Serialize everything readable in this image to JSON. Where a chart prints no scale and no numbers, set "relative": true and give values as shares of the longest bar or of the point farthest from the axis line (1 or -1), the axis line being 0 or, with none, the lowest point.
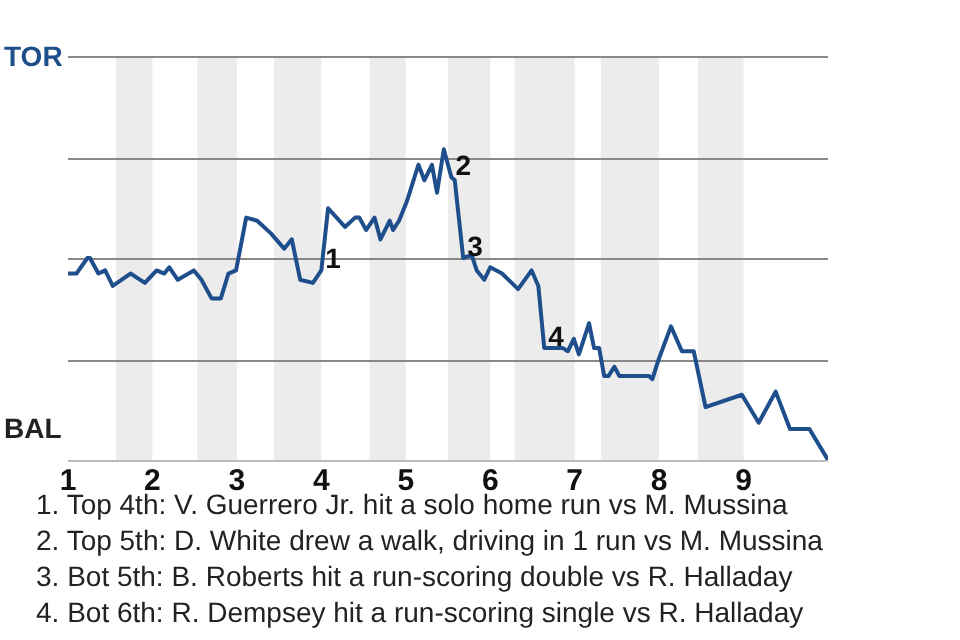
{
  "chart_data": {
    "type": "line",
    "x": [
      1,
      1.1,
      1.23,
      1.26,
      1.36,
      1.44,
      1.53,
      1.74,
      1.91,
      2.05,
      2.14,
      2.2,
      2.3,
      2.49,
      2.58,
      2.7,
      2.81,
      2.9,
      2.99,
      3.11,
      3.24,
      3.4,
      3.56,
      3.65,
      3.75,
      3.9,
      4,
      4.08,
      4.28,
      4.4,
      4.45,
      4.53,
      4.63,
      4.7,
      4.81,
      4.85,
      4.92,
      5.01,
      5.15,
      5.22,
      5.31,
      5.37,
      5.45,
      5.54,
      5.58,
      5.68,
      5.78,
      5.84,
      5.93,
      6,
      6.14,
      6.33,
      6.49,
      6.57,
      6.64,
      6.86,
      6.92,
      6.99,
      7.05,
      7.17,
      7.23,
      7.29,
      7.35,
      7.4,
      7.47,
      7.53,
      7.88,
      7.92,
      7.99,
      8.14,
      8.27,
      8.41,
      8.55,
      8.98,
      9.18,
      9.38,
      9.55,
      9.78,
      10
    ],
    "series": [
      {
        "color": "#1f4e8c",
        "values": [
          0.6,
          0.6,
          0.65,
          0.65,
          0.6,
          0.61,
          0.56,
          0.6,
          0.57,
          0.61,
          0.6,
          0.62,
          0.58,
          0.61,
          0.58,
          0.52,
          0.52,
          0.6,
          0.61,
          0.78,
          0.77,
          0.73,
          0.68,
          0.71,
          0.58,
          0.57,
          0.61,
          0.81,
          0.75,
          0.78,
          0.78,
          0.74,
          0.78,
          0.71,
          0.77,
          0.74,
          0.77,
          0.83,
          0.95,
          0.9,
          0.95,
          0.86,
          1,
          0.91,
          0.9,
          0.65,
          0.66,
          0.61,
          0.58,
          0.62,
          0.6,
          0.55,
          0.61,
          0.56,
          0.36,
          0.36,
          0.35,
          0.39,
          0.34,
          0.44,
          0.36,
          0.36,
          0.27,
          0.27,
          0.3,
          0.27,
          0.27,
          0.26,
          0.32,
          0.43,
          0.35,
          0.35,
          0.17,
          0.21,
          0.12,
          0.22,
          0.1,
          0.1,
          0
        ]
      }
    ],
    "xlim": [
      1,
      10
    ],
    "xticks": [
      1,
      2,
      3,
      4,
      5,
      6,
      7,
      8,
      9
    ],
    "relative": true,
    "grid": "y",
    "bands": [
      {
        "axis": "x",
        "from": 1.57,
        "to": 2,
        "color": "#ececec"
      },
      {
        "axis": "x",
        "from": 2.53,
        "to": 3,
        "color": "#ececec"
      },
      {
        "axis": "x",
        "from": 3.44,
        "to": 4,
        "color": "#ececec"
      },
      {
        "axis": "x",
        "from": 4.57,
        "to": 5,
        "color": "#ececec"
      },
      {
        "axis": "x",
        "from": 5.5,
        "to": 6,
        "color": "#ececec"
      },
      {
        "axis": "x",
        "from": 6.29,
        "to": 7,
        "color": "#ececec"
      },
      {
        "axis": "x",
        "from": 7.31,
        "to": 8,
        "color": "#ececec"
      },
      {
        "axis": "x",
        "from": 8.46,
        "to": 9,
        "color": "#ececec"
      }
    ],
    "annotations": [
      "TOR",
      "BAL",
      {
        "text": "1",
        "x": 4,
        "y": 0.61
      },
      {
        "text": "2",
        "x": 5.54,
        "y": 0.91
      },
      {
        "text": "3",
        "x": 5.68,
        "y": 0.65
      },
      {
        "text": "4",
        "x": 6.64,
        "y": 0.36
      },
      "1. Top 4th: V. Guerrero Jr. hit a solo home run vs M. Mussina",
      "2. Top 5th: D. White drew a walk, driving in 1 run vs M. Mussina",
      "3. Bot 5th: B. Roberts hit a run-scoring double vs R. Halladay",
      "4. Bot 6th: R. Dempsey hit a run-scoring single vs R. Halladay"
    ]
  }
}
